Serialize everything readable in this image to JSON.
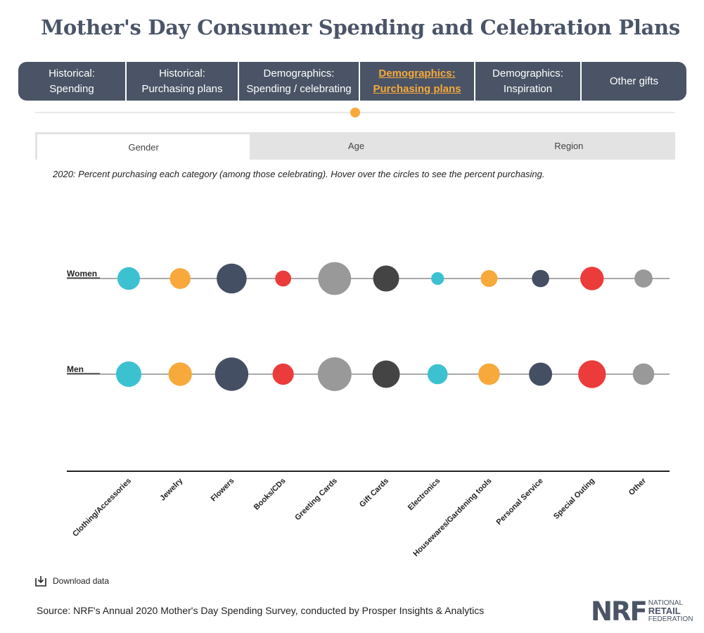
{
  "title": "Mother's Day Consumer Spending and Celebration Plans",
  "nav": {
    "tabs": [
      {
        "line1": "Historical:",
        "line2": "Spending"
      },
      {
        "line1": "Historical:",
        "line2": "Purchasing plans"
      },
      {
        "line1": "Demographics:",
        "line2": "Spending / celebrating"
      },
      {
        "line1": "Demographics:",
        "line2": "Purchasing plans"
      },
      {
        "line1": "Demographics:",
        "line2": "Inspiration"
      },
      {
        "line1": "Other gifts",
        "line2": ""
      }
    ]
  },
  "subtabs": [
    "Gender",
    "Age",
    "Region"
  ],
  "caption": "2020: Percent purchasing each category (among those celebrating). Hover over the circles to see the percent purchasing.",
  "download_label": "Download data",
  "source": "Source: NRF's Annual 2020 Mother's Day Spending Survey, conducted by Prosper Insights & Analytics",
  "logo": {
    "mark": "NRF",
    "line1": "NATIONAL",
    "line2": "RETAIL",
    "line3": "FEDERATION"
  },
  "colors": {
    "teal": "#3cc1d1",
    "orange": "#f7a93b",
    "navy": "#454f63",
    "red": "#ec3b3b",
    "gray": "#999999",
    "charcoal": "#444444"
  },
  "chart_data": {
    "type": "scatter",
    "title": "2020: Percent purchasing each category (among those celebrating)",
    "categories": [
      "Clothing/Accessories",
      "Jewelry",
      "Flowers",
      "Books/CDs",
      "Greeting Cards",
      "Gift Cards",
      "Electronics",
      "Housewares/Gardening tools",
      "Personal Service",
      "Special Outing",
      "Other"
    ],
    "series": [
      {
        "name": "Women",
        "values": [
          34,
          29,
          60,
          17,
          72,
          45,
          11,
          19,
          20,
          37,
          22
        ]
      },
      {
        "name": "Men",
        "values": [
          43,
          37,
          74,
          30,
          76,
          50,
          27,
          31,
          36,
          51,
          31
        ]
      }
    ],
    "category_colors": [
      "#3cc1d1",
      "#f7a93b",
      "#454f63",
      "#ec3b3b",
      "#999999",
      "#444444",
      "#3cc1d1",
      "#f7a93b",
      "#454f63",
      "#ec3b3b",
      "#999999"
    ],
    "encoding": "circle area proportional to percent purchasing"
  }
}
